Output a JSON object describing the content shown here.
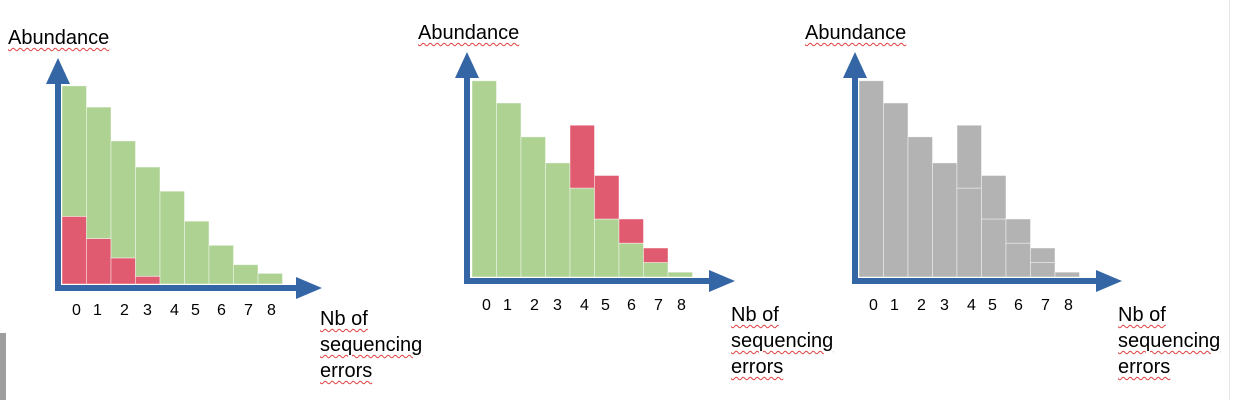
{
  "chart_data": [
    {
      "type": "bar",
      "stacked": true,
      "ylabel": "Abundance",
      "xlabel": "Nb of sequencing errors",
      "categories": [
        "0",
        "1",
        "2",
        "3",
        "4",
        "5",
        "6",
        "7",
        "8"
      ],
      "series": [
        {
          "color": "#e05b6f",
          "values": [
            70,
            47,
            27,
            8,
            0,
            0,
            0,
            0,
            0
          ]
        },
        {
          "color": "#aed292",
          "values": [
            135,
            136,
            121,
            113,
            96,
            65,
            40,
            20,
            11
          ]
        }
      ],
      "ylim": [
        0,
        210
      ],
      "grid": false
    },
    {
      "type": "bar",
      "stacked": true,
      "ylabel": "Abundance",
      "xlabel": "Nb of sequencing errors",
      "categories": [
        "0",
        "1",
        "2",
        "3",
        "4",
        "5",
        "6",
        "7",
        "8"
      ],
      "series": [
        {
          "color": "#aed292",
          "values": [
            203,
            180,
            145,
            118,
            92,
            60,
            35,
            15,
            5
          ]
        },
        {
          "color": "#e05b6f",
          "values": [
            0,
            0,
            0,
            0,
            65,
            45,
            25,
            15,
            0
          ]
        }
      ],
      "ylim": [
        0,
        210
      ],
      "grid": false
    },
    {
      "type": "bar",
      "stacked": true,
      "ylabel": "Abundance",
      "xlabel": "Nb of sequencing errors",
      "categories": [
        "0",
        "1",
        "2",
        "3",
        "4",
        "5",
        "6",
        "7",
        "8"
      ],
      "series": [
        {
          "color": "#b3b3b3",
          "values": [
            203,
            180,
            145,
            118,
            92,
            60,
            35,
            15,
            5
          ]
        },
        {
          "color": "#b3b3b3",
          "values": [
            0,
            0,
            0,
            0,
            65,
            45,
            25,
            15,
            0
          ]
        }
      ],
      "ylim": [
        0,
        210
      ],
      "grid": false
    }
  ]
}
